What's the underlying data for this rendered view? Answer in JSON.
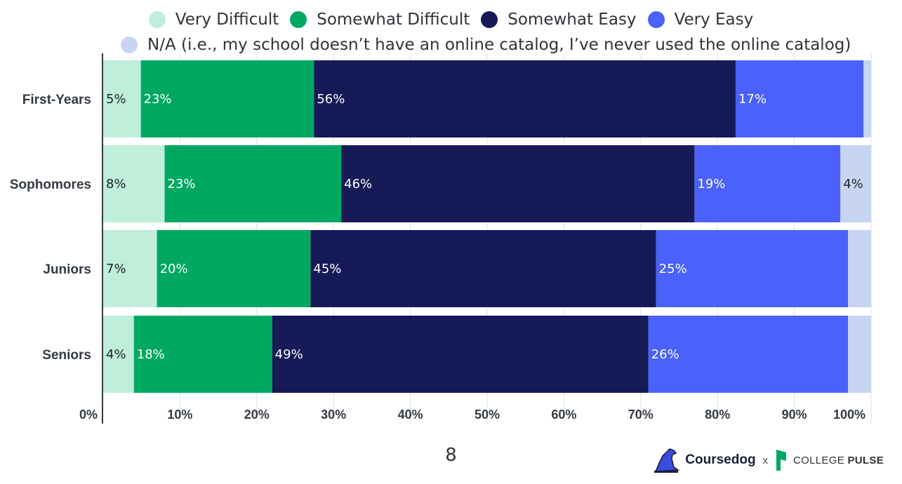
{
  "legend": [
    {
      "label": "Very Difficult",
      "color": "#bfeedb"
    },
    {
      "label": "Somewhat Difficult",
      "color": "#00a862"
    },
    {
      "label": "Somewhat Easy",
      "color": "#161a57"
    },
    {
      "label": "Very Easy",
      "color": "#4a61fb"
    },
    {
      "label": "N/A (i.e., my school doesn’t have an online catalog, I’ve never used the online catalog)",
      "color": "#c7d5f3"
    }
  ],
  "chart_data": {
    "type": "bar",
    "orientation": "horizontal",
    "stacked": true,
    "categories": [
      "First-Years",
      "Sophomores",
      "Juniors",
      "Seniors"
    ],
    "series": [
      {
        "name": "Very Difficult",
        "values": [
          5,
          8,
          7,
          4
        ],
        "color": "#bfeedb",
        "label_color": "#1f2328"
      },
      {
        "name": "Somewhat Difficult",
        "values": [
          23,
          23,
          20,
          18
        ],
        "color": "#00a862",
        "label_color": "#ffffff"
      },
      {
        "name": "Somewhat Easy",
        "values": [
          56,
          46,
          45,
          49
        ],
        "color": "#161a57",
        "label_color": "#ffffff"
      },
      {
        "name": "Very Easy",
        "values": [
          17,
          19,
          25,
          26
        ],
        "color": "#4a61fb",
        "label_color": "#ffffff"
      },
      {
        "name": "N/A (i.e., my school doesn’t have an online catalog, I’ve never used the online catalog)",
        "values": [
          1,
          4,
          3,
          3
        ],
        "color": "#c7d5f3",
        "label_color": "#1f2328"
      }
    ],
    "data_labels": [
      [
        "5%",
        "23%",
        "56%",
        "17%",
        ""
      ],
      [
        "8%",
        "23%",
        "46%",
        "19%",
        "4%"
      ],
      [
        "7%",
        "20%",
        "45%",
        "25%",
        ""
      ],
      [
        "4%",
        "18%",
        "49%",
        "26%",
        ""
      ]
    ],
    "xlim": [
      0,
      100
    ],
    "xticks": [
      0,
      10,
      20,
      30,
      40,
      50,
      60,
      70,
      80,
      90,
      100
    ],
    "xtick_labels": [
      "0%",
      "10%",
      "20%",
      "30%",
      "40%",
      "50%",
      "60%",
      "70%",
      "80%",
      "90%",
      "100%"
    ],
    "grid": true,
    "legend_position": "top"
  },
  "footer": {
    "page_number": "8",
    "brand_left": "Coursedog",
    "brand_separator": "x",
    "brand_right_a": "COLLEGE",
    "brand_right_b": "PULSE"
  }
}
